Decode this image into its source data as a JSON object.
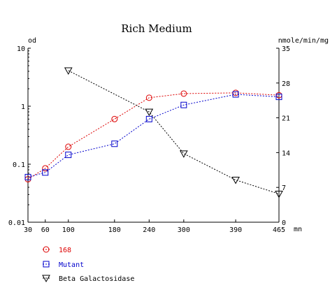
{
  "chart_data": {
    "type": "line",
    "title": "Rich Medium",
    "xlabel": "mn",
    "ylabel": "od",
    "y2label": "nmole/min/mg",
    "x_ticks": [
      30,
      60,
      100,
      180,
      240,
      300,
      390,
      465
    ],
    "x_tick_labels": [
      "30",
      "60",
      "100",
      "180",
      "240",
      "300",
      "390",
      "465"
    ],
    "xlim": [
      30,
      465
    ],
    "y_scale": "log",
    "ylim": [
      0.01,
      10
    ],
    "y_ticks": [
      0.01,
      0.1,
      1,
      10
    ],
    "y_tick_labels": [
      "0.01",
      "0.1",
      "1",
      "10"
    ],
    "y2lim": [
      0,
      35
    ],
    "y2_ticks": [
      0,
      7,
      14,
      21,
      28,
      35
    ],
    "y2_tick_labels": [
      "0",
      "7",
      "14",
      "21",
      "28",
      "35"
    ],
    "grid": false,
    "legend_position": "bottom-left",
    "series": [
      {
        "name": "168",
        "axis": "left",
        "marker": "circle",
        "color": "#dd0000",
        "x": [
          30,
          60,
          100,
          180,
          240,
          300,
          390,
          465
        ],
        "y": [
          0.055,
          0.085,
          0.2,
          0.6,
          1.4,
          1.65,
          1.7,
          1.55
        ]
      },
      {
        "name": "Mutant",
        "axis": "left",
        "marker": "square",
        "color": "#0000cc",
        "x": [
          30,
          60,
          100,
          180,
          240,
          300,
          390,
          465
        ],
        "y": [
          0.06,
          0.072,
          0.145,
          0.225,
          0.6,
          1.05,
          1.6,
          1.45
        ]
      },
      {
        "name": "Beta Galactosidase",
        "axis": "right",
        "marker": "triangle-down",
        "color": "#000000",
        "x": [
          100,
          240,
          300,
          390,
          465
        ],
        "y": [
          30.5,
          22.2,
          13.8,
          8.5,
          5.7
        ]
      }
    ]
  }
}
